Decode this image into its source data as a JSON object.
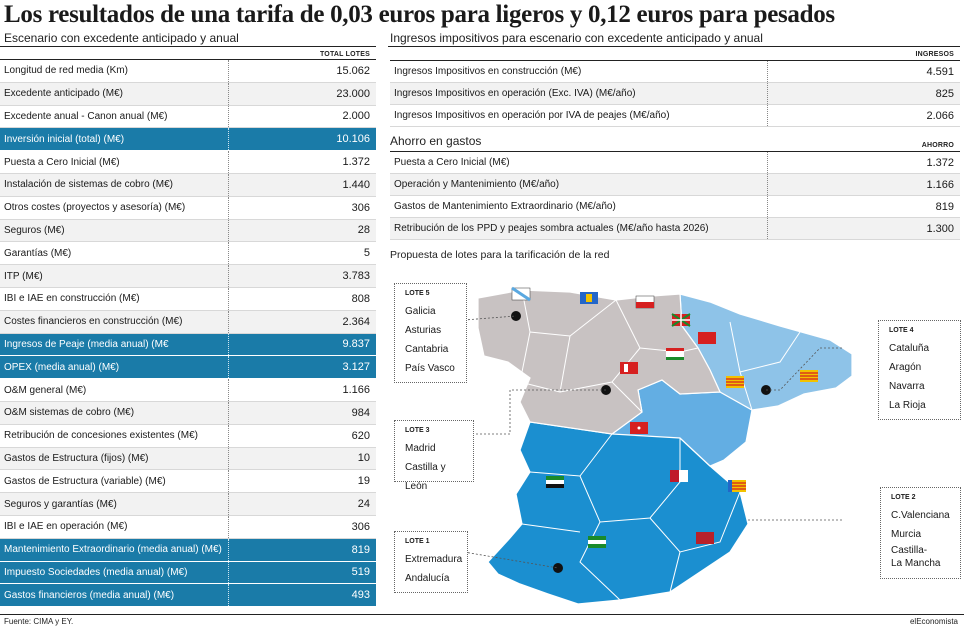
{
  "title": "Los resultados de una tarifa de 0,03 euros para ligeros y 0,12 euros para pesados",
  "left": {
    "subtitle": "Escenario con excedente anticipado y anual",
    "col_header": "TOTAL LOTES",
    "rows": [
      {
        "label": "Longitud de red media (Km)",
        "value": "15.062"
      },
      {
        "label": "Excedente anticipado (M€)",
        "value": "23.000"
      },
      {
        "label": "Excedente anual - Canon anual (M€)",
        "value": "2.000"
      },
      {
        "label": "Inversión inicial (total) (M€)",
        "value": "10.106"
      },
      {
        "label": "Puesta a Cero Inicial (M€)",
        "value": "1.372"
      },
      {
        "label": "Instalación de sistemas de cobro (M€)",
        "value": "1.440"
      },
      {
        "label": "Otros costes (proyectos y asesoría) (M€)",
        "value": "306"
      },
      {
        "label": "Seguros (M€)",
        "value": "28"
      },
      {
        "label": "Garantías (M€)",
        "value": "5"
      },
      {
        "label": "ITP (M€)",
        "value": "3.783"
      },
      {
        "label": "IBI e IAE en construcción (M€)",
        "value": "808"
      },
      {
        "label": "Costes financieros en construcción (M€)",
        "value": "2.364"
      },
      {
        "label": "Ingresos de Peaje (media anual) (M€",
        "value": "9.837"
      },
      {
        "label": "OPEX (media anual) (M€)",
        "value": "3.127"
      },
      {
        "label": "O&M general (M€)",
        "value": "1.166"
      },
      {
        "label": "O&M sistemas de cobro (M€)",
        "value": "984"
      },
      {
        "label": "Retribución de concesiones existentes (M€)",
        "value": "620"
      },
      {
        "label": "Gastos de Estructura (fijos) (M€)",
        "value": "10"
      },
      {
        "label": "Gastos de Estructura (variable) (M€)",
        "value": "19"
      },
      {
        "label": "Seguros y garantías (M€)",
        "value": "24"
      },
      {
        "label": "IBI e IAE en operación (M€)",
        "value": "306"
      },
      {
        "label": "Mantenimiento Extraordinario (media anual) (M€)",
        "value": "819"
      },
      {
        "label": "Impuesto Sociedades (media anual) (M€)",
        "value": "519"
      },
      {
        "label": "Gastos financieros (media anual) (M€)",
        "value": "493"
      }
    ]
  },
  "ingresos": {
    "subtitle": "Ingresos impositivos para escenario con excedente anticipado y anual",
    "col_header": "INGRESOS",
    "rows": [
      {
        "label": "Ingresos Impositivos en construcción (M€)",
        "value": "4.591"
      },
      {
        "label": "Ingresos Impositivos en operación (Exc. IVA) (M€/año)",
        "value": "825"
      },
      {
        "label": "Ingresos Impositivos en operación por IVA de peajes (M€/año)",
        "value": "2.066"
      }
    ]
  },
  "ahorro": {
    "subtitle": "Ahorro en gastos",
    "col_header": "AHORRO",
    "rows": [
      {
        "label": "Puesta a Cero Inicial (M€)",
        "value": "1.372"
      },
      {
        "label": "Operación y Mantenimiento (M€/año)",
        "value": "1.166"
      },
      {
        "label": "Gastos de Mantenimiento Extraordinario (M€/año)",
        "value": "819"
      },
      {
        "label": "Retribución de los PPD y peajes sombra actuales (M€/año hasta 2026)",
        "value": "1.300"
      }
    ]
  },
  "map": {
    "subtitle": "Propuesta de lotes para la tarificación de la red",
    "lotes": [
      {
        "id": "LOTE 5",
        "regions": [
          "Galicia",
          "Asturias",
          "Cantabria",
          "País Vasco"
        ]
      },
      {
        "id": "LOTE 4",
        "regions": [
          "Cataluña",
          "Aragón",
          "Navarra",
          "La Rioja"
        ]
      },
      {
        "id": "LOTE 3",
        "regions": [
          "Madrid",
          "Castilla y León"
        ]
      },
      {
        "id": "LOTE 2",
        "regions": [
          "C.Valenciana",
          "Murcia",
          "Castilla-\nLa Mancha"
        ]
      },
      {
        "id": "LOTE 1",
        "regions": [
          "Extremadura",
          "Andalucía"
        ]
      }
    ],
    "colors": {
      "lote5": "#c8c2c2",
      "lote4": "#8ec3e8",
      "lote3": "#63aee3",
      "south": "#1b8fd0"
    }
  },
  "footer": {
    "source": "Fuente: CIMA y EY.",
    "brand": "elEconomista"
  },
  "colors": {
    "highlight": "#1a7ba8",
    "row_alt": "#f2f2f2"
  }
}
